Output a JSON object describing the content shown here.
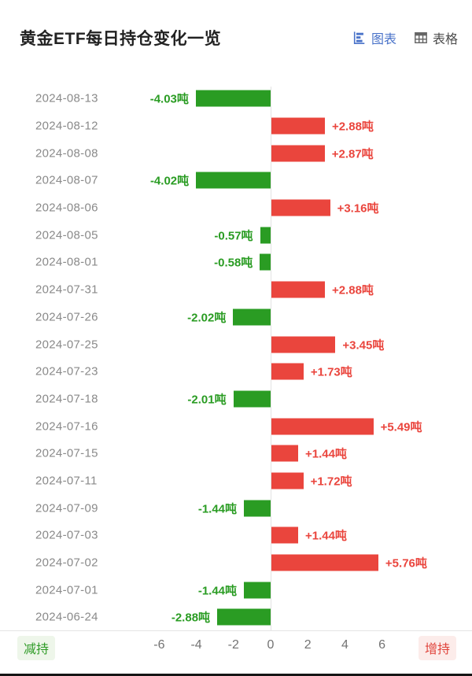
{
  "header": {
    "title": "黄金ETF每日持仓变化一览",
    "view_toggle": {
      "chart_label": "图表",
      "table_label": "表格"
    }
  },
  "chart_data": {
    "type": "bar",
    "orientation": "horizontal",
    "title": "黄金ETF每日持仓变化一览",
    "unit": "吨",
    "categories": [
      "2024-08-13",
      "2024-08-12",
      "2024-08-08",
      "2024-08-07",
      "2024-08-06",
      "2024-08-05",
      "2024-08-01",
      "2024-07-31",
      "2024-07-26",
      "2024-07-25",
      "2024-07-23",
      "2024-07-18",
      "2024-07-16",
      "2024-07-15",
      "2024-07-11",
      "2024-07-09",
      "2024-07-03",
      "2024-07-02",
      "2024-07-01",
      "2024-06-24"
    ],
    "values": [
      -4.03,
      2.88,
      2.87,
      -4.02,
      3.16,
      -0.57,
      -0.58,
      2.88,
      -2.02,
      3.45,
      1.73,
      -2.01,
      5.49,
      1.44,
      1.72,
      -1.44,
      1.44,
      5.76,
      -1.44,
      -2.88
    ],
    "value_labels": [
      "-4.03吨",
      "+2.88吨",
      "+2.87吨",
      "-4.02吨",
      "+3.16吨",
      "-0.57吨",
      "-0.58吨",
      "+2.88吨",
      "-2.02吨",
      "+3.45吨",
      "+1.73吨",
      "-2.01吨",
      "+5.49吨",
      "+1.44吨",
      "+1.72吨",
      "-1.44吨",
      "+1.44吨",
      "+5.76吨",
      "-1.44吨",
      "-2.88吨"
    ],
    "x_ticks": [
      "-6",
      "-4",
      "-2",
      "0",
      "2",
      "4",
      "6"
    ],
    "xlim": [
      -7,
      7.8
    ],
    "grid": false,
    "colors": {
      "positive": "#ea453d",
      "negative": "#2a9c23"
    },
    "axis_legend": {
      "left": "减持",
      "right": "增持"
    }
  }
}
